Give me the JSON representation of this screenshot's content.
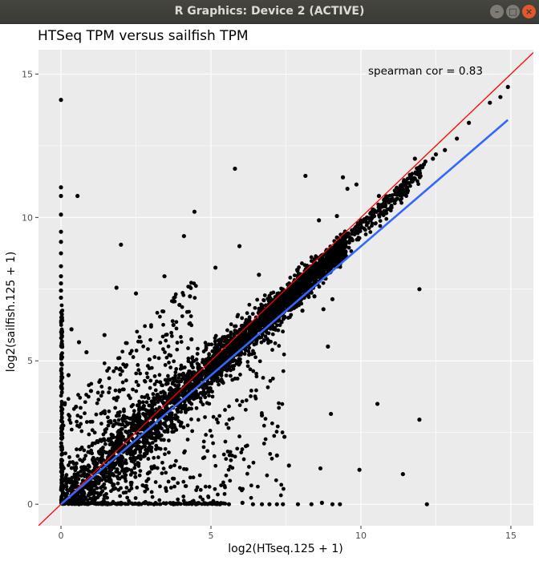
{
  "window": {
    "title": "R Graphics: Device 2 (ACTIVE)",
    "buttons": {
      "minimize": "–",
      "maximize": "□",
      "close": "×"
    }
  },
  "colors": {
    "panel_bg": "#ebebeb",
    "grid": "#ffffff",
    "points": "#000000",
    "identity_line": "#ff0000",
    "regression_line": "#3366ff"
  },
  "chart_data": {
    "type": "scatter",
    "title": "HTSeq TPM versus sailfish TPM",
    "xlabel": "log2(HTseq.125 + 1)",
    "ylabel": "log2(sailfish.125 + 1)",
    "annotation": "spearman cor = 0.83",
    "xlim": [
      -0.75,
      15.75
    ],
    "ylim": [
      -0.75,
      15.85
    ],
    "xticks": [
      0,
      5,
      10,
      15
    ],
    "yticks": [
      0,
      5,
      10,
      15
    ],
    "grid": true,
    "reference_line": {
      "slope": 1,
      "intercept": 0,
      "color": "#ff0000"
    },
    "fit_line": {
      "x": [
        0,
        14.9
      ],
      "y": [
        0,
        13.4
      ],
      "color": "#3366ff"
    },
    "points": [
      [
        14.9,
        14.55
      ],
      [
        14.65,
        14.2
      ],
      [
        14.3,
        14.0
      ],
      [
        13.6,
        13.3
      ],
      [
        13.2,
        12.75
      ],
      [
        12.8,
        12.35
      ],
      [
        12.15,
        11.95
      ],
      [
        12.1,
        11.85
      ],
      [
        12.05,
        11.75
      ],
      [
        11.95,
        11.7
      ],
      [
        11.9,
        11.5
      ],
      [
        11.8,
        11.35
      ],
      [
        11.7,
        11.3
      ],
      [
        11.6,
        11.2
      ],
      [
        11.5,
        11.1
      ],
      [
        11.4,
        10.95
      ],
      [
        11.3,
        10.85
      ],
      [
        11.2,
        10.8
      ],
      [
        11.05,
        10.65
      ],
      [
        10.95,
        10.6
      ],
      [
        10.8,
        10.5
      ],
      [
        10.6,
        10.35
      ],
      [
        10.4,
        10.15
      ],
      [
        10.2,
        10.0
      ],
      [
        9.9,
        9.7
      ],
      [
        9.7,
        9.55
      ],
      [
        9.5,
        9.45
      ],
      [
        11.8,
        12.05
      ],
      [
        12.4,
        12.05
      ],
      [
        12.5,
        12.2
      ],
      [
        10.6,
        10.75
      ],
      [
        9.2,
        9.3
      ],
      [
        11.95,
        7.5
      ],
      [
        10.55,
        3.5
      ],
      [
        11.95,
        2.95
      ],
      [
        12.2,
        0.0
      ],
      [
        11.4,
        1.05
      ],
      [
        9.95,
        1.2
      ],
      [
        9.3,
        0.0
      ],
      [
        9.05,
        0.0
      ],
      [
        8.35,
        0.0
      ],
      [
        8.7,
        0.05
      ],
      [
        7.9,
        0.0
      ],
      [
        7.4,
        0.0
      ],
      [
        7.2,
        0.0
      ],
      [
        6.95,
        0.0
      ],
      [
        6.7,
        0.0
      ],
      [
        6.4,
        0.0
      ],
      [
        6.05,
        0.05
      ],
      [
        5.6,
        0.0
      ],
      [
        9.0,
        3.15
      ],
      [
        8.65,
        1.25
      ],
      [
        7.6,
        1.35
      ],
      [
        7.45,
        2.35
      ],
      [
        7.2,
        1.7
      ],
      [
        6.7,
        3.1
      ],
      [
        5.8,
        11.7
      ],
      [
        4.45,
        10.2
      ],
      [
        4.1,
        9.35
      ],
      [
        5.15,
        8.25
      ],
      [
        5.95,
        9.0
      ],
      [
        6.6,
        8.0
      ],
      [
        8.15,
        11.45
      ],
      [
        9.4,
        11.4
      ],
      [
        9.85,
        11.15
      ],
      [
        9.55,
        11.0
      ],
      [
        9.2,
        10.05
      ],
      [
        8.6,
        9.9
      ],
      [
        8.2,
        7.75
      ],
      [
        8.45,
        7.25
      ],
      [
        8.75,
        6.8
      ],
      [
        8.9,
        5.5
      ],
      [
        8.45,
        7.75
      ],
      [
        9.05,
        7.15
      ],
      [
        7.55,
        6.85
      ],
      [
        7.25,
        6.4
      ],
      [
        8.05,
        6.75
      ],
      [
        0.0,
        14.1
      ],
      [
        0.0,
        11.05
      ],
      [
        0.0,
        10.75
      ],
      [
        0.0,
        10.1
      ],
      [
        0.0,
        9.5
      ],
      [
        0.0,
        9.15
      ],
      [
        0.0,
        8.75
      ],
      [
        0.0,
        8.3
      ],
      [
        0.0,
        7.95
      ],
      [
        0.0,
        7.7
      ],
      [
        0.0,
        7.45
      ],
      [
        0.0,
        7.2
      ],
      [
        0.55,
        10.75
      ],
      [
        2.0,
        9.05
      ],
      [
        1.85,
        7.55
      ],
      [
        3.45,
        7.95
      ],
      [
        2.5,
        7.35
      ],
      [
        4.3,
        7.25
      ],
      [
        3.95,
        6.95
      ],
      [
        1.45,
        5.9
      ],
      [
        0.85,
        5.3
      ],
      [
        2.15,
        4.8
      ],
      [
        1.0,
        3.95
      ],
      [
        0.5,
        3.4
      ],
      [
        2.95,
        5.05
      ],
      [
        4.35,
        5.75
      ],
      [
        3.75,
        6.25
      ],
      [
        0.35,
        6.1
      ],
      [
        0.6,
        5.65
      ],
      [
        0.25,
        4.5
      ],
      [
        2.0,
        0.05
      ],
      [
        2.6,
        0.0
      ],
      [
        3.1,
        0.0
      ],
      [
        3.75,
        0.0
      ],
      [
        4.5,
        0.0
      ],
      [
        5.3,
        0.0
      ],
      [
        1.55,
        0.0
      ],
      [
        1.05,
        0.05
      ],
      [
        0.6,
        0.0
      ]
    ]
  }
}
